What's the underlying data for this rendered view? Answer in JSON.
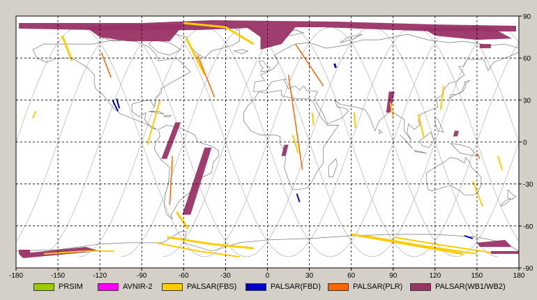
{
  "map": {
    "lon_ticks": [
      "-180",
      "-150",
      "-120",
      "-90",
      "-60",
      "-30",
      "0",
      "30",
      "60",
      "90",
      "120",
      "150",
      "180"
    ],
    "lat_ticks": [
      "90",
      "60",
      "30",
      "0",
      "-30",
      "-60",
      "-90"
    ],
    "lon_range": [
      -180,
      180
    ],
    "lat_range": [
      -90,
      90
    ],
    "grid": "dashed",
    "background": "#ffffff",
    "frame_background": "#d4d0c8"
  },
  "legend": [
    {
      "label": "PRSIM",
      "color": "#99cc00"
    },
    {
      "label": "AVNIR-2",
      "color": "#ff00ff"
    },
    {
      "label": "PALSAR(FBS)",
      "color": "#ffcc00"
    },
    {
      "label": "PALSAR(FBD)",
      "color": "#0000cc"
    },
    {
      "label": "PALSAR(PLR)",
      "color": "#ff6600"
    },
    {
      "label": "PALSAR(WB1/WB2)",
      "color": "#993366"
    }
  ]
}
